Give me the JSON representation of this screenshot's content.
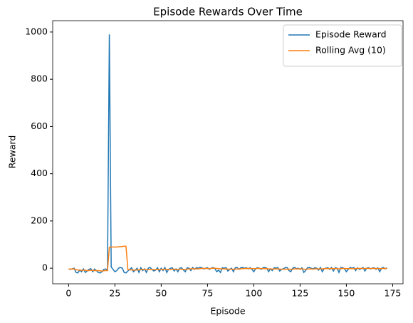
{
  "chart_data": {
    "type": "line",
    "title": "Episode Rewards Over Time",
    "xlabel": "Episode",
    "ylabel": "Reward",
    "xlim": [
      -8.6,
      180.6
    ],
    "xticks": [
      0,
      25,
      50,
      75,
      100,
      125,
      150,
      175
    ],
    "ylim": [
      -66,
      1048
    ],
    "yticks": [
      0,
      200,
      400,
      600,
      800,
      1000
    ],
    "legend": "upper right",
    "series": [
      {
        "name": "Episode Reward",
        "color": "#1f77b4",
        "values": [
          -3,
          -5,
          -2,
          0,
          -18,
          -20,
          -8,
          -15,
          -3,
          -18,
          -12,
          -5,
          -2,
          -15,
          -4,
          -10,
          -18,
          -20,
          -15,
          -5,
          -3,
          -8,
          990,
          5,
          -5,
          -15,
          -10,
          0,
          3,
          0,
          -18,
          -20,
          -12,
          -5,
          2,
          -15,
          -8,
          0,
          -18,
          2,
          -10,
          -3,
          -18,
          0,
          3,
          -5,
          -12,
          -8,
          2,
          -15,
          0,
          -10,
          3,
          -18,
          -5,
          0,
          2,
          -12,
          -3,
          -15,
          0,
          2,
          -8,
          -15,
          2,
          0,
          -10,
          3,
          -5,
          2,
          0,
          3,
          2,
          -3,
          0,
          2,
          -5,
          0,
          3,
          -2,
          -15,
          -8,
          -18,
          2,
          0,
          3,
          -12,
          -5,
          0,
          -15,
          2,
          3,
          -5,
          2,
          3,
          0,
          2,
          -3,
          2,
          -5,
          -15,
          -2,
          2,
          0,
          -5,
          2,
          3,
          0,
          -15,
          -3,
          -10,
          2,
          0,
          3,
          -12,
          -5,
          -2,
          2,
          3,
          -10,
          -15,
          0,
          3,
          -2,
          0,
          -5,
          2,
          -18,
          -10,
          2,
          3,
          0,
          -3,
          2,
          0,
          -8,
          3,
          -15,
          -2,
          0,
          2,
          -5,
          3,
          -12,
          2,
          0,
          -18,
          3,
          2,
          -2,
          -15,
          -5,
          3,
          0,
          3,
          -10,
          2,
          -5,
          -2,
          3,
          -12,
          0,
          2,
          -3,
          0,
          2,
          -5,
          2,
          -15,
          0,
          3,
          -3,
          2
        ]
      },
      {
        "name": "Rolling Avg (10)",
        "color": "#ff7f0e",
        "values": [
          -3,
          -4,
          -3,
          -3,
          -6,
          -8,
          -8,
          -9,
          -8,
          -9,
          -10,
          -10,
          -9,
          -9,
          -10,
          -10,
          -10,
          -11,
          -12,
          -11,
          -10,
          -10,
          89,
          90,
          90,
          89,
          90,
          91,
          91,
          92,
          93,
          93,
          -6,
          -7,
          -7,
          -8,
          -8,
          -7,
          -7,
          -6,
          -5,
          -6,
          -6,
          -6,
          -5,
          -5,
          -6,
          -6,
          -5,
          -6,
          -5,
          -5,
          -4,
          -5,
          -5,
          -5,
          -4,
          -4,
          -5,
          -5,
          -4,
          -4,
          -5,
          -5,
          -4,
          -3,
          -3,
          -2,
          -3,
          -3,
          -3,
          -2,
          -1,
          -1,
          -1,
          -1,
          -2,
          -1,
          0,
          0,
          -1,
          -2,
          -3,
          -3,
          -3,
          -3,
          -4,
          -4,
          -4,
          -5,
          -4,
          -3,
          -3,
          -3,
          -2,
          -2,
          -1,
          -1,
          -1,
          -2,
          -2,
          -2,
          -1,
          -1,
          -2,
          -2,
          -2,
          -2,
          -3,
          -3,
          -4,
          -3,
          -3,
          -3,
          -4,
          -4,
          -4,
          -4,
          -4,
          -4,
          -5,
          -4,
          -3,
          -3,
          -3,
          -3,
          -3,
          -4,
          -5,
          -4,
          -3,
          -3,
          -4,
          -3,
          -3,
          -3,
          -3,
          -3,
          -2,
          -2,
          -2,
          -2,
          -1,
          -2,
          -2,
          -2,
          -3,
          -2,
          -1,
          -1,
          -2,
          -2,
          -2,
          -2,
          -2,
          -2,
          -1,
          -1,
          -1,
          -1,
          -1,
          -1,
          -1,
          -1,
          -1,
          -1,
          -2,
          -1,
          -2,
          -2,
          -1,
          -1,
          -1
        ]
      }
    ]
  }
}
